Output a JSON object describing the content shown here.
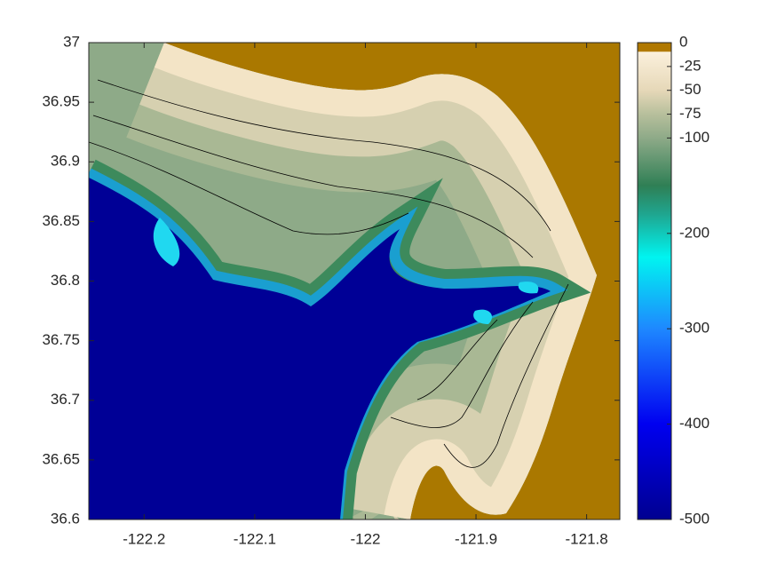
{
  "chart_data": {
    "type": "contour",
    "xlim": [
      -122.25,
      -121.77
    ],
    "ylim": [
      36.6,
      37
    ],
    "xticks": [
      -122.2,
      -122.1,
      -122,
      -121.9,
      -121.8
    ],
    "yticks": [
      36.6,
      36.65,
      36.7,
      36.75,
      36.8,
      36.85,
      36.9,
      36.95,
      37
    ],
    "clim": [
      -500,
      0
    ],
    "cticks": [
      -500,
      -400,
      -300,
      -200,
      -100,
      -75,
      -50,
      -25,
      0
    ]
  }
}
